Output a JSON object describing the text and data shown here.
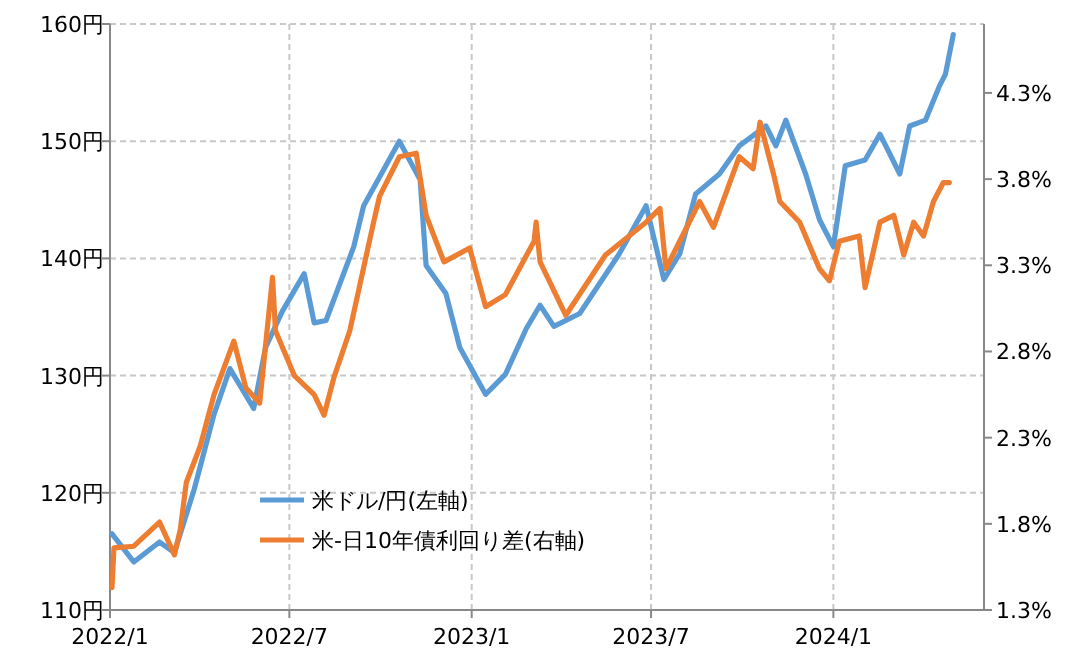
{
  "chart_data": {
    "type": "line",
    "grid": true,
    "legend": "bottom left",
    "xlim": [
      "2022-01-01",
      "2024-06-01"
    ],
    "xticks": [
      {
        "value": "2022-01-01",
        "label": "2022/1"
      },
      {
        "value": "2022-07-01",
        "label": "2022/7"
      },
      {
        "value": "2023-01-01",
        "label": "2023/1"
      },
      {
        "value": "2023-07-01",
        "label": "2023/7"
      },
      {
        "value": "2024-01-01",
        "label": "2024/1"
      }
    ],
    "ylim": [
      110,
      160
    ],
    "yticks": [
      {
        "value": 110,
        "label": "110円"
      },
      {
        "value": 120,
        "label": "120円"
      },
      {
        "value": 130,
        "label": "130円"
      },
      {
        "value": 140,
        "label": "140円"
      },
      {
        "value": 150,
        "label": "150円"
      },
      {
        "value": 160,
        "label": "160円"
      }
    ],
    "y2lim": [
      1.3,
      4.7
    ],
    "y2ticks": [
      {
        "value": 1.3,
        "label": "1.3%"
      },
      {
        "value": 1.8,
        "label": "1.8%"
      },
      {
        "value": 2.3,
        "label": "2.3%"
      },
      {
        "value": 2.8,
        "label": "2.8%"
      },
      {
        "value": 3.3,
        "label": "3.3%"
      },
      {
        "value": 3.8,
        "label": "3.8%"
      },
      {
        "value": 4.3,
        "label": "4.3%"
      }
    ],
    "series": [
      {
        "name": "米ドル/円(左軸)",
        "color": "#5b9bd5",
        "x": [
          "2022-01-03",
          "2022-01-25",
          "2022-02-20",
          "2022-03-07",
          "2022-03-27",
          "2022-04-16",
          "2022-05-02",
          "2022-05-26",
          "2022-06-07",
          "2022-06-24",
          "2022-07-16",
          "2022-07-26",
          "2022-08-07",
          "2022-09-04",
          "2022-09-14",
          "2022-10-20",
          "2022-11-10",
          "2022-11-16",
          "2022-12-06",
          "2022-12-20",
          "2023-01-15",
          "2023-02-04",
          "2023-02-25",
          "2023-03-11",
          "2023-03-25",
          "2023-04-20",
          "2023-05-30",
          "2023-06-26",
          "2023-07-14",
          "2023-07-30",
          "2023-08-15",
          "2023-09-08",
          "2023-09-28",
          "2023-10-25",
          "2023-11-04",
          "2023-11-14",
          "2023-12-04",
          "2023-12-18",
          "2024-01-01",
          "2024-01-13",
          "2024-02-02",
          "2024-02-17",
          "2024-03-08",
          "2024-03-18",
          "2024-04-03",
          "2024-04-17",
          "2024-04-23",
          "2024-05-01"
        ],
        "values": [
          116.5,
          114.1,
          115.8,
          114.9,
          120.3,
          126.7,
          130.6,
          127.2,
          132.4,
          135.5,
          138.7,
          134.5,
          134.7,
          141,
          144.5,
          150,
          146.7,
          139.4,
          137,
          132.4,
          128.4,
          130.1,
          134,
          136,
          134.2,
          135.3,
          140.4,
          144.5,
          138.2,
          140.4,
          145.5,
          147.2,
          149.6,
          151.3,
          149.6,
          151.8,
          147.2,
          143.3,
          141,
          147.9,
          148.4,
          150.6,
          147.2,
          151.3,
          151.8,
          154.7,
          155.7,
          159.1
        ]
      },
      {
        "name": "米-日10年債利回り差(右軸)",
        "color": "#ed7d31",
        "axis": "y2",
        "x": [
          "2022-01-03",
          "2022-01-05",
          "2022-01-25",
          "2022-02-20",
          "2022-03-07",
          "2022-03-13",
          "2022-03-19",
          "2022-04-02",
          "2022-04-16",
          "2022-05-06",
          "2022-05-18",
          "2022-06-01",
          "2022-06-14",
          "2022-06-17",
          "2022-07-06",
          "2022-07-26",
          "2022-08-05",
          "2022-08-15",
          "2022-08-31",
          "2022-09-24",
          "2022-09-30",
          "2022-10-20",
          "2022-11-06",
          "2022-11-16",
          "2022-12-04",
          "2022-12-30",
          "2023-01-15",
          "2023-02-04",
          "2023-03-05",
          "2023-03-07",
          "2023-03-11",
          "2023-04-06",
          "2023-05-16",
          "2023-06-26",
          "2023-07-10",
          "2023-07-16",
          "2023-08-19",
          "2023-09-02",
          "2023-09-28",
          "2023-10-12",
          "2023-10-19",
          "2023-11-02",
          "2023-11-08",
          "2023-11-28",
          "2023-12-12",
          "2023-12-18",
          "2023-12-28",
          "2024-01-07",
          "2024-01-27",
          "2024-02-02",
          "2024-02-17",
          "2024-03-02",
          "2024-03-12",
          "2024-03-22",
          "2024-04-01",
          "2024-04-11",
          "2024-04-21",
          "2024-04-27"
        ],
        "values": [
          1.43,
          1.66,
          1.67,
          1.81,
          1.62,
          1.77,
          2.04,
          2.25,
          2.55,
          2.86,
          2.59,
          2.5,
          3.23,
          2.92,
          2.66,
          2.55,
          2.43,
          2.65,
          2.92,
          3.55,
          3.7,
          3.93,
          3.95,
          3.59,
          3.32,
          3.4,
          3.06,
          3.13,
          3.44,
          3.55,
          3.32,
          3.01,
          3.36,
          3.55,
          3.63,
          3.28,
          3.67,
          3.52,
          3.93,
          3.86,
          4.13,
          3.82,
          3.67,
          3.55,
          3.36,
          3.28,
          3.21,
          3.44,
          3.47,
          3.17,
          3.55,
          3.59,
          3.36,
          3.55,
          3.47,
          3.67,
          3.78,
          3.78
        ]
      }
    ]
  }
}
